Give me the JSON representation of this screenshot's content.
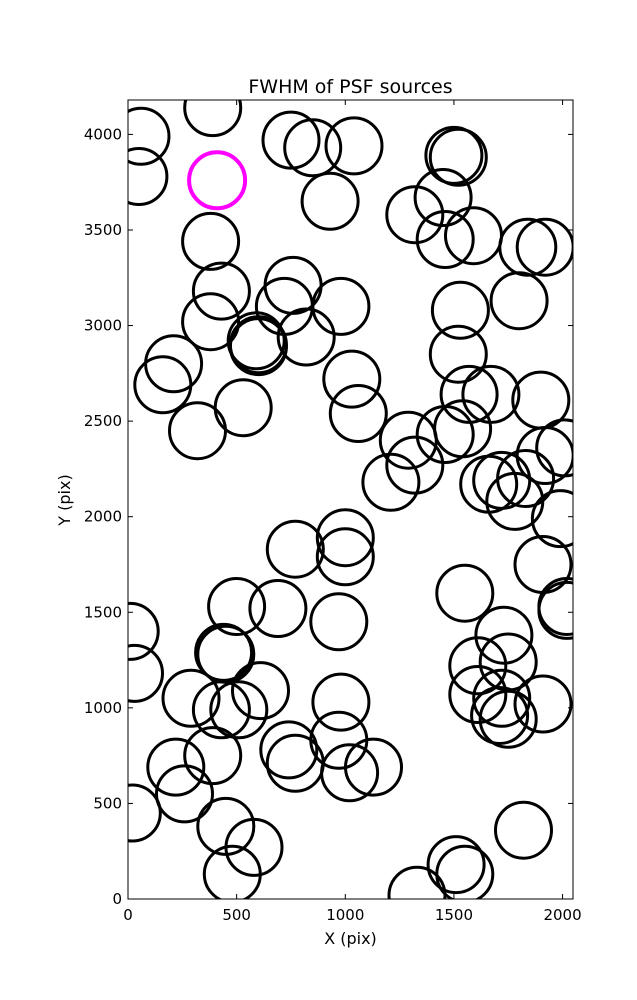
{
  "chart_data": {
    "type": "scatter",
    "title": "FWHM of PSF sources",
    "xlabel": "X (pix)",
    "ylabel": "Y (pix)",
    "xlim": [
      0,
      2048
    ],
    "ylim": [
      0,
      4180
    ],
    "xticks": [
      0,
      500,
      1000,
      1500,
      2000
    ],
    "yticks": [
      0,
      500,
      1000,
      1500,
      2000,
      2500,
      3000,
      3500,
      4000
    ],
    "grid": false,
    "marker": "open circle",
    "series": [
      {
        "color": "#000000",
        "points": [
          [
            60,
            3990
          ],
          [
            390,
            4140
          ],
          [
            50,
            3780
          ],
          [
            750,
            3970
          ],
          [
            850,
            3930
          ],
          [
            1040,
            3940
          ],
          [
            930,
            3650
          ],
          [
            1320,
            3580
          ],
          [
            1450,
            3670
          ],
          [
            1500,
            3890
          ],
          [
            1520,
            3880
          ],
          [
            380,
            3440
          ],
          [
            1460,
            3450
          ],
          [
            1590,
            3470
          ],
          [
            1840,
            3410
          ],
          [
            1920,
            3410
          ],
          [
            430,
            3180
          ],
          [
            760,
            3210
          ],
          [
            720,
            3100
          ],
          [
            980,
            3100
          ],
          [
            1530,
            3080
          ],
          [
            1800,
            3130
          ],
          [
            380,
            3020
          ],
          [
            820,
            2940
          ],
          [
            590,
            2920
          ],
          [
            600,
            2900
          ],
          [
            600,
            2890
          ],
          [
            210,
            2800
          ],
          [
            1520,
            2850
          ],
          [
            160,
            2690
          ],
          [
            1030,
            2720
          ],
          [
            1570,
            2640
          ],
          [
            1670,
            2640
          ],
          [
            1900,
            2610
          ],
          [
            530,
            2570
          ],
          [
            1060,
            2540
          ],
          [
            320,
            2450
          ],
          [
            1540,
            2460
          ],
          [
            1460,
            2430
          ],
          [
            1290,
            2400
          ],
          [
            1320,
            2270
          ],
          [
            1210,
            2180
          ],
          [
            1920,
            2320
          ],
          [
            2010,
            2360
          ],
          [
            1720,
            2190
          ],
          [
            1830,
            2200
          ],
          [
            1660,
            2170
          ],
          [
            1780,
            2080
          ],
          [
            1990,
            1990
          ],
          [
            770,
            1830
          ],
          [
            1000,
            1890
          ],
          [
            1000,
            1790
          ],
          [
            1910,
            1750
          ],
          [
            1550,
            1600
          ],
          [
            500,
            1530
          ],
          [
            690,
            1520
          ],
          [
            2020,
            1530
          ],
          [
            2020,
            1510
          ],
          [
            970,
            1450
          ],
          [
            10,
            1400
          ],
          [
            1730,
            1380
          ],
          [
            440,
            1290
          ],
          [
            450,
            1280
          ],
          [
            1610,
            1220
          ],
          [
            1750,
            1240
          ],
          [
            30,
            1180
          ],
          [
            610,
            1090
          ],
          [
            290,
            1050
          ],
          [
            980,
            1030
          ],
          [
            1610,
            1070
          ],
          [
            1720,
            1050
          ],
          [
            1910,
            1020
          ],
          [
            430,
            990
          ],
          [
            510,
            990
          ],
          [
            1710,
            960
          ],
          [
            1750,
            940
          ],
          [
            740,
            780
          ],
          [
            970,
            830
          ],
          [
            220,
            690
          ],
          [
            390,
            750
          ],
          [
            770,
            710
          ],
          [
            1020,
            660
          ],
          [
            1130,
            690
          ],
          [
            260,
            550
          ],
          [
            20,
            450
          ],
          [
            450,
            380
          ],
          [
            1820,
            360
          ],
          [
            580,
            270
          ],
          [
            480,
            130
          ],
          [
            1330,
            20
          ],
          [
            1510,
            180
          ],
          [
            1550,
            130
          ]
        ]
      },
      {
        "color": "#ff00ff",
        "points": [
          [
            410,
            3760
          ]
        ]
      }
    ]
  }
}
